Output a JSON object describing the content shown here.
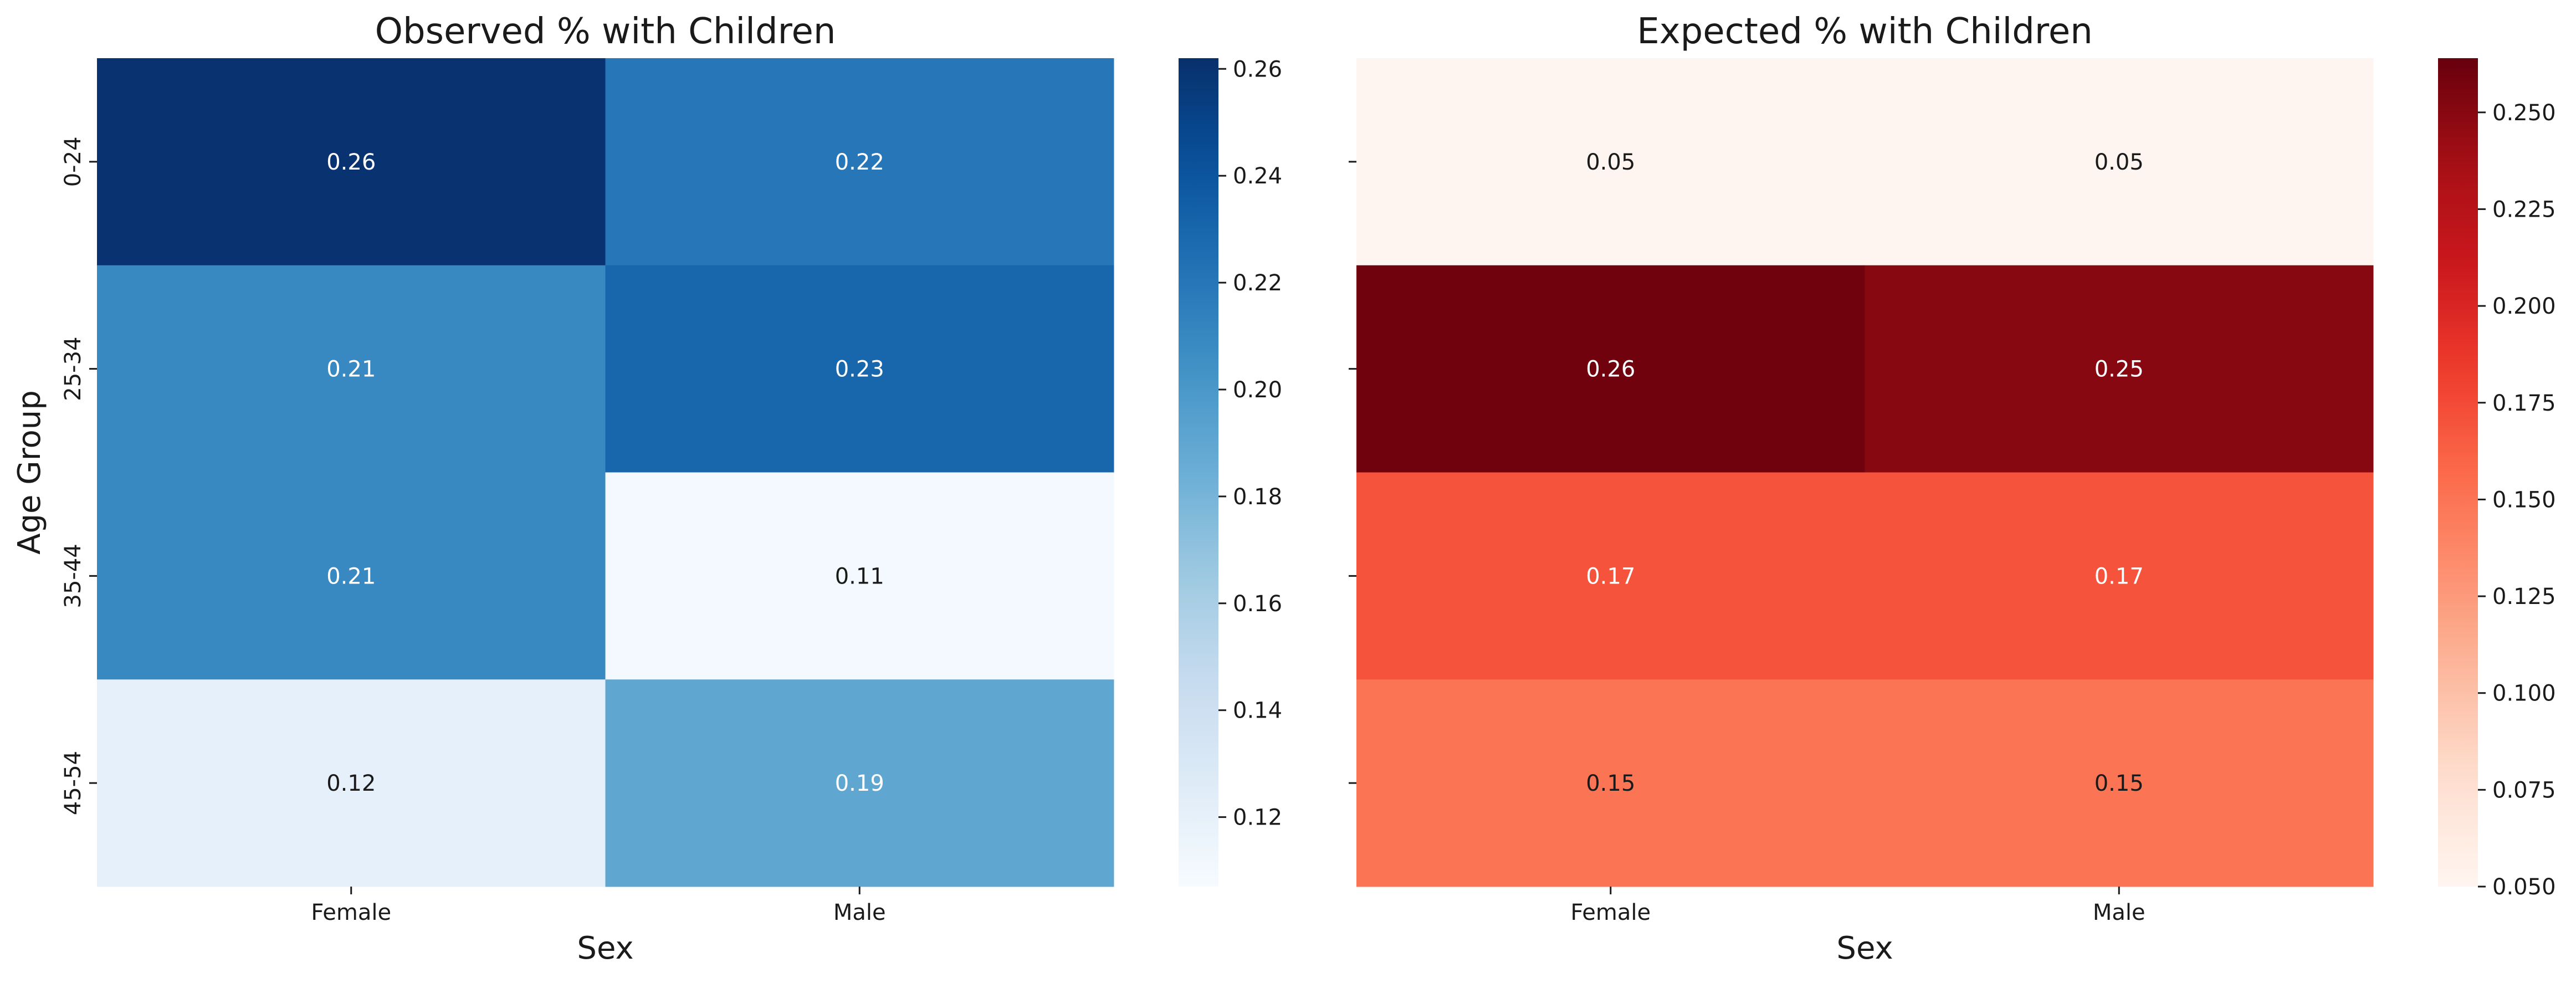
{
  "chart_data": [
    {
      "type": "heatmap",
      "title": "Observed % with Children",
      "xlabel": "Sex",
      "ylabel": "Age Group",
      "x_categories": [
        "Female",
        "Male"
      ],
      "y_categories": [
        "0-24",
        "25-34",
        "35-44",
        "45-54"
      ],
      "values": [
        [
          0.26,
          0.22
        ],
        [
          0.21,
          0.23
        ],
        [
          0.21,
          0.11
        ],
        [
          0.12,
          0.19
        ]
      ],
      "cell_labels": [
        [
          "0.26",
          "0.22"
        ],
        [
          "0.21",
          "0.23"
        ],
        [
          "0.21",
          "0.11"
        ],
        [
          "0.12",
          "0.19"
        ]
      ],
      "colormap": "Blues",
      "colorbar": {
        "range": [
          0.107,
          0.262
        ],
        "ticks": [
          0.12,
          0.14,
          0.16,
          0.18,
          0.2,
          0.22,
          0.24,
          0.26
        ],
        "tick_labels": [
          "0.12",
          "0.14",
          "0.16",
          "0.18",
          "0.20",
          "0.22",
          "0.24",
          "0.26"
        ]
      },
      "show_y_tick_labels": true,
      "grid": false
    },
    {
      "type": "heatmap",
      "title": "Expected % with Children",
      "xlabel": "Sex",
      "ylabel": "",
      "x_categories": [
        "Female",
        "Male"
      ],
      "y_categories": [
        "0-24",
        "25-34",
        "35-44",
        "45-54"
      ],
      "values": [
        [
          0.05,
          0.05
        ],
        [
          0.26,
          0.25
        ],
        [
          0.17,
          0.17
        ],
        [
          0.15,
          0.15
        ]
      ],
      "cell_labels": [
        [
          "0.05",
          "0.05"
        ],
        [
          "0.26",
          "0.25"
        ],
        [
          "0.17",
          "0.17"
        ],
        [
          "0.15",
          "0.15"
        ]
      ],
      "colormap": "Reds",
      "colorbar": {
        "range": [
          0.05,
          0.264
        ],
        "ticks": [
          0.05,
          0.075,
          0.1,
          0.125,
          0.15,
          0.175,
          0.2,
          0.225,
          0.25
        ],
        "tick_labels": [
          "0.050",
          "0.075",
          "0.100",
          "0.125",
          "0.150",
          "0.175",
          "0.200",
          "0.225",
          "0.250"
        ]
      },
      "show_y_tick_labels": false,
      "grid": false
    }
  ]
}
